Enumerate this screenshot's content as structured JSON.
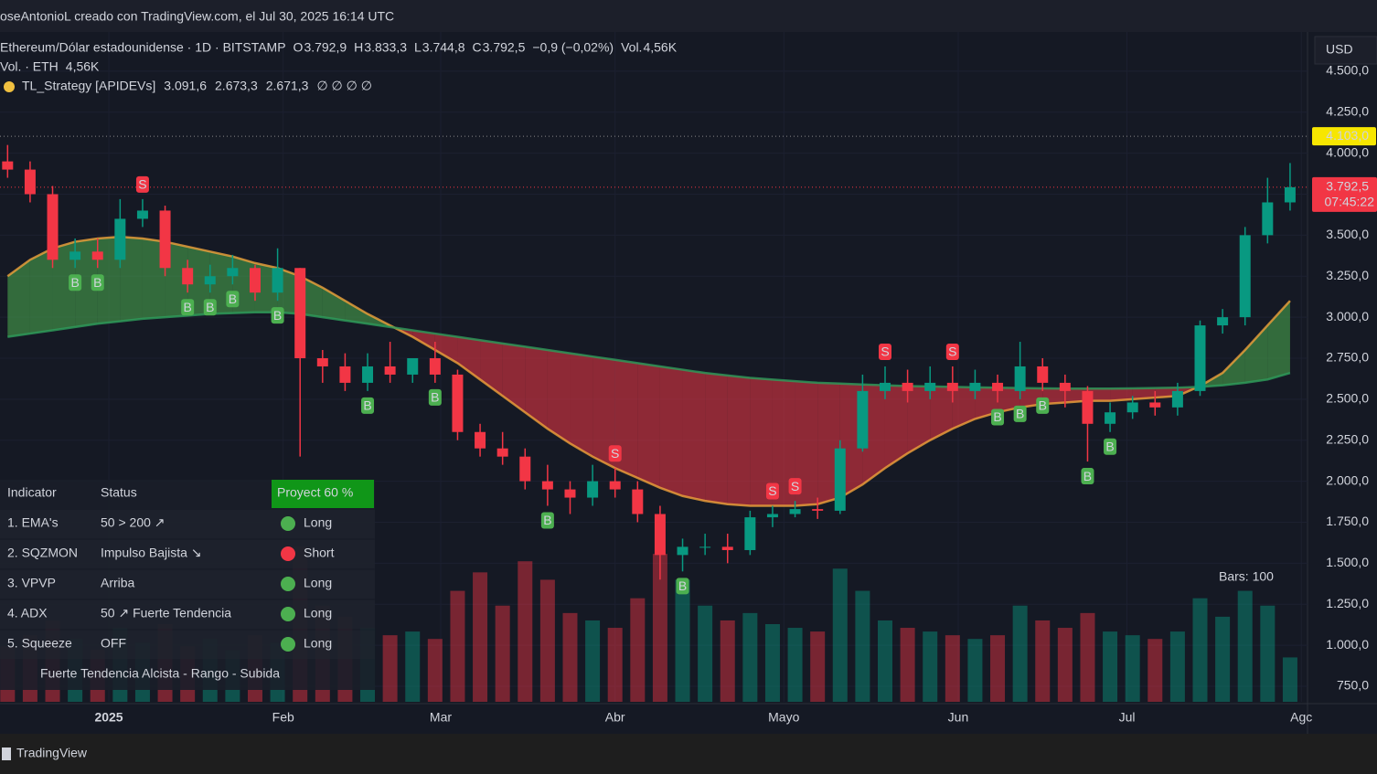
{
  "header": "oseAntonioL creado con TradingView.com, el Jul 30, 2025 16:14 UTC",
  "legend": {
    "symbol": "Ethereum/Dólar estadounidense · 1D · BITSTAMP",
    "ohlc": [
      {
        "key": "O",
        "value": "3.792,9"
      },
      {
        "key": "H",
        "value": "3.833,3"
      },
      {
        "key": "L",
        "value": "3.744,8"
      },
      {
        "key": "C",
        "value": "3.792,5"
      }
    ],
    "change": "−0,9 (−0,02%)",
    "vol_key": "Vol.",
    "vol_value": "4,56K",
    "vol_line": "Vol. · ETH",
    "vol_line_value": "4,56K",
    "strategy": "TL_Strategy [APIDEVs]",
    "strategy_values": [
      "3.091,6",
      "2.673,3",
      "2.671,3"
    ],
    "strategy_empty": "∅ ∅ ∅ ∅"
  },
  "currency": "USD",
  "bars_note": "Bars: 100",
  "footer": "TradingView",
  "table": {
    "header": [
      "Indicator",
      "Status",
      "Proyect 60 %"
    ],
    "rows": [
      {
        "name": "1. EMA's",
        "status": "50 > 200 ↗",
        "signal": "Long",
        "color": "#4caf50"
      },
      {
        "name": "2. SQZMON",
        "status": "Impulso Bajista ↘",
        "signal": "Short",
        "color": "#f23645"
      },
      {
        "name": "3. VPVP",
        "status": "Arriba",
        "signal": "Long",
        "color": "#4caf50"
      },
      {
        "name": "4. ADX",
        "status": "50 ↗ Fuerte Tendencia",
        "signal": "Long",
        "color": "#4caf50"
      },
      {
        "name": "5. Squeeze",
        "status": "OFF",
        "signal": "Long",
        "color": "#4caf50"
      }
    ],
    "summary": "Fuerte Tendencia Alcista - Rango - Subida"
  },
  "chart_data": {
    "type": "candlestick",
    "up_color": "#089981",
    "down_color": "#f23645",
    "xlim": [
      -19.35,
      213.1
    ],
    "xticks": [
      {
        "value": 0,
        "label": "2025"
      },
      {
        "value": 31,
        "label": "Feb"
      },
      {
        "value": 59,
        "label": "Mar"
      },
      {
        "value": 90,
        "label": "Abr"
      },
      {
        "value": 120,
        "label": "Mayo"
      },
      {
        "value": 151,
        "label": "Jun"
      },
      {
        "value": 181,
        "label": "Jul"
      },
      {
        "value": 212,
        "label": "Agc"
      }
    ],
    "ylim": [
      655,
      4739
    ],
    "yticks": [
      {
        "value": 750,
        "label": "750,0"
      },
      {
        "value": 1000,
        "label": "1.000,0"
      },
      {
        "value": 1250,
        "label": "1.250,0"
      },
      {
        "value": 1500,
        "label": "1.500,0"
      },
      {
        "value": 1750,
        "label": "1.750,0"
      },
      {
        "value": 2000,
        "label": "2.000,0"
      },
      {
        "value": 2250,
        "label": "2.250,0"
      },
      {
        "value": 2500,
        "label": "2.500,0"
      },
      {
        "value": 2750,
        "label": "2.750,0"
      },
      {
        "value": 3000,
        "label": "3.000,0"
      },
      {
        "value": 3250,
        "label": "3.250,0"
      },
      {
        "value": 3500,
        "label": "3.500,0"
      },
      {
        "value": 3750,
        "label": "3.750,0"
      },
      {
        "value": 4000,
        "label": "4.000,0"
      },
      {
        "value": 4250,
        "label": "4.250,0"
      },
      {
        "value": 4500,
        "label": "4.500,0"
      }
    ],
    "x": [
      -18,
      -14,
      -10,
      -6,
      -2,
      2,
      6,
      10,
      14,
      18,
      22,
      26,
      30,
      34,
      38,
      42,
      46,
      50,
      54,
      58,
      62,
      66,
      70,
      74,
      78,
      82,
      86,
      90,
      94,
      98,
      102,
      106,
      110,
      114,
      118,
      122,
      126,
      130,
      134,
      138,
      142,
      146,
      150,
      154,
      158,
      162,
      166,
      170,
      174,
      178,
      182,
      186,
      190,
      194,
      198,
      202,
      206,
      210
    ],
    "open": [
      3950,
      3900,
      3750,
      3350,
      3400,
      3350,
      3600,
      3650,
      3300,
      3200,
      3250,
      3300,
      3150,
      3300,
      2750,
      2700,
      2600,
      2700,
      2650,
      2750,
      2650,
      2300,
      2200,
      2150,
      2000,
      1950,
      1900,
      2000,
      1950,
      1800,
      1550,
      1600,
      1600,
      1580,
      1780,
      1800,
      1830,
      1820,
      2200,
      2550,
      2600,
      2550,
      2600,
      2550,
      2600,
      2550,
      2700,
      2600,
      2550,
      2350,
      2420,
      2480,
      2450,
      2550,
      2950,
      3000,
      3500,
      3700
    ],
    "high": [
      4050,
      3950,
      3800,
      3480,
      3480,
      3720,
      3720,
      3680,
      3350,
      3320,
      3380,
      3320,
      3420,
      3300,
      2800,
      2780,
      2780,
      2850,
      2750,
      2850,
      2680,
      2350,
      2300,
      2200,
      2100,
      2000,
      2100,
      2080,
      2000,
      1850,
      1650,
      1680,
      1680,
      1820,
      1850,
      1880,
      1900,
      2250,
      2650,
      2700,
      2680,
      2700,
      2700,
      2680,
      2650,
      2850,
      2750,
      2650,
      2580,
      2480,
      2520,
      2550,
      2600,
      2980,
      3050,
      3550,
      3850,
      3940
    ],
    "low": [
      3850,
      3700,
      3300,
      3300,
      3300,
      3300,
      3550,
      3250,
      3150,
      3150,
      3200,
      3100,
      3100,
      2150,
      2600,
      2550,
      2550,
      2600,
      2600,
      2600,
      2250,
      2150,
      2100,
      1950,
      1850,
      1800,
      1850,
      1900,
      1750,
      1400,
      1450,
      1550,
      1500,
      1550,
      1720,
      1780,
      1770,
      1800,
      2180,
      2500,
      2480,
      2500,
      2480,
      2500,
      2480,
      2500,
      2550,
      2450,
      2120,
      2300,
      2380,
      2400,
      2400,
      2520,
      2900,
      2950,
      3450,
      3650
    ],
    "close": [
      3900,
      3750,
      3350,
      3400,
      3350,
      3600,
      3650,
      3300,
      3200,
      3250,
      3300,
      3150,
      3300,
      2750,
      2700,
      2600,
      2700,
      2650,
      2750,
      2650,
      2300,
      2200,
      2150,
      2000,
      1950,
      1900,
      2000,
      1950,
      1800,
      1550,
      1600,
      1600,
      1580,
      1780,
      1800,
      1830,
      1820,
      2200,
      2550,
      2600,
      2550,
      2600,
      2550,
      2600,
      2550,
      2700,
      2600,
      2550,
      2350,
      2420,
      2480,
      2450,
      2550,
      2950,
      3000,
      3500,
      3700,
      3792.5
    ],
    "volume": [
      150,
      180,
      220,
      170,
      140,
      200,
      160,
      210,
      150,
      170,
      140,
      180,
      160,
      420,
      260,
      230,
      200,
      180,
      190,
      170,
      300,
      350,
      260,
      380,
      330,
      240,
      220,
      200,
      280,
      400,
      330,
      260,
      220,
      240,
      210,
      200,
      190,
      360,
      300,
      220,
      200,
      190,
      180,
      170,
      180,
      260,
      220,
      200,
      240,
      190,
      180,
      170,
      190,
      280,
      230,
      300,
      260,
      120
    ],
    "series": [
      {
        "color": "#f0a23b",
        "values": [
          3250,
          3350,
          3420,
          3460,
          3480,
          3490,
          3480,
          3460,
          3430,
          3400,
          3370,
          3330,
          3300,
          3250,
          3180,
          3100,
          3020,
          2950,
          2880,
          2800,
          2720,
          2620,
          2520,
          2420,
          2320,
          2230,
          2150,
          2080,
          2020,
          1960,
          1910,
          1880,
          1860,
          1850,
          1850,
          1850,
          1860,
          1900,
          1980,
          2080,
          2170,
          2250,
          2320,
          2380,
          2420,
          2450,
          2470,
          2480,
          2490,
          2490,
          2500,
          2510,
          2520,
          2580,
          2660,
          2800,
          2950,
          3100
        ]
      },
      {
        "color": "#2e9e5b",
        "values": [
          2880,
          2900,
          2920,
          2940,
          2960,
          2975,
          2990,
          3000,
          3010,
          3020,
          3025,
          3030,
          3030,
          3020,
          3000,
          2980,
          2960,
          2940,
          2920,
          2900,
          2880,
          2860,
          2840,
          2820,
          2800,
          2780,
          2760,
          2740,
          2720,
          2700,
          2680,
          2660,
          2645,
          2630,
          2620,
          2610,
          2600,
          2595,
          2590,
          2585,
          2580,
          2578,
          2575,
          2572,
          2570,
          2568,
          2566,
          2565,
          2565,
          2565,
          2566,
          2568,
          2570,
          2575,
          2585,
          2600,
          2620,
          2660
        ]
      }
    ],
    "band_up_color": "#4caf50",
    "band_down_color": "#f23645",
    "signals": [
      {
        "candle": 3,
        "text": "B"
      },
      {
        "candle": 4,
        "text": "B"
      },
      {
        "candle": 6,
        "text": "S"
      },
      {
        "candle": 8,
        "text": "B"
      },
      {
        "candle": 9,
        "text": "B"
      },
      {
        "candle": 10,
        "text": "B"
      },
      {
        "candle": 12,
        "text": "B"
      },
      {
        "candle": 16,
        "text": "B"
      },
      {
        "candle": 19,
        "text": "B"
      },
      {
        "candle": 24,
        "text": "B"
      },
      {
        "candle": 27,
        "text": "S"
      },
      {
        "candle": 30,
        "text": "B"
      },
      {
        "candle": 34,
        "text": "S"
      },
      {
        "candle": 35,
        "text": "S"
      },
      {
        "candle": 39,
        "text": "S"
      },
      {
        "candle": 42,
        "text": "S"
      },
      {
        "candle": 44,
        "text": "B"
      },
      {
        "candle": 45,
        "text": "B"
      },
      {
        "candle": 46,
        "text": "B"
      },
      {
        "candle": 48,
        "text": "B"
      },
      {
        "candle": 49,
        "text": "B"
      }
    ],
    "high_line": {
      "value": 4103,
      "label": "4.103,0",
      "color": "#f7e600"
    },
    "last_price": {
      "value": 3792.5,
      "label": "3.792,5",
      "countdown": "07:45:22",
      "color": "#f23645"
    }
  }
}
